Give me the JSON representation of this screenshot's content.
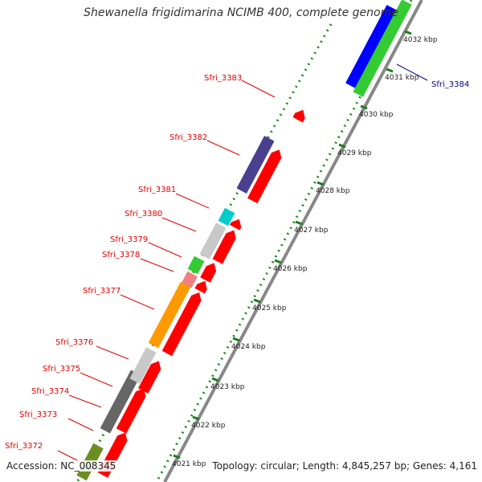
{
  "title": "Shewanella frigidimarina NCIMB 400, complete genome",
  "accession": "Accession: NC_008345",
  "topology": "Topology: circular; Length: 4,845,257 bp; Genes: 4,161",
  "colors": {
    "forward_cds": "#ff0000",
    "backbone": "#888888",
    "dotted_ring": "#228b22",
    "label_red": "#e00000",
    "label_blue": "#000080"
  },
  "kbp_ticks": [
    "4021 kbp",
    "4022 kbp",
    "4023 kbp",
    "4024 kbp",
    "4025 kbp",
    "4026 kbp",
    "4027 kbp",
    "4028 kbp",
    "4029 kbp",
    "4030 kbp",
    "4031 kbp",
    "4032 kbp"
  ],
  "gene_labels": [
    {
      "id": "Sfri_3372",
      "color": "#e00000"
    },
    {
      "id": "Sfri_3373",
      "color": "#e00000"
    },
    {
      "id": "Sfri_3374",
      "color": "#e00000"
    },
    {
      "id": "Sfri_3375",
      "color": "#e00000"
    },
    {
      "id": "Sfri_3376",
      "color": "#e00000"
    },
    {
      "id": "Sfri_3377",
      "color": "#e00000"
    },
    {
      "id": "Sfri_3378",
      "color": "#e00000"
    },
    {
      "id": "Sfri_3379",
      "color": "#e00000"
    },
    {
      "id": "Sfri_3380",
      "color": "#e00000"
    },
    {
      "id": "Sfri_3381",
      "color": "#e00000"
    },
    {
      "id": "Sfri_3382",
      "color": "#e00000"
    },
    {
      "id": "Sfri_3383",
      "color": "#e00000"
    },
    {
      "id": "Sfri_3384",
      "color": "#000080"
    }
  ],
  "cog_colors": [
    "#6b8e23",
    "#666666",
    "#c8c8c8",
    "#ff9900",
    "#f08080",
    "#33cc33",
    "#c8c8c8",
    "#00cccc",
    "#4b3f8f",
    "#0000ff",
    "#33cc33"
  ]
}
